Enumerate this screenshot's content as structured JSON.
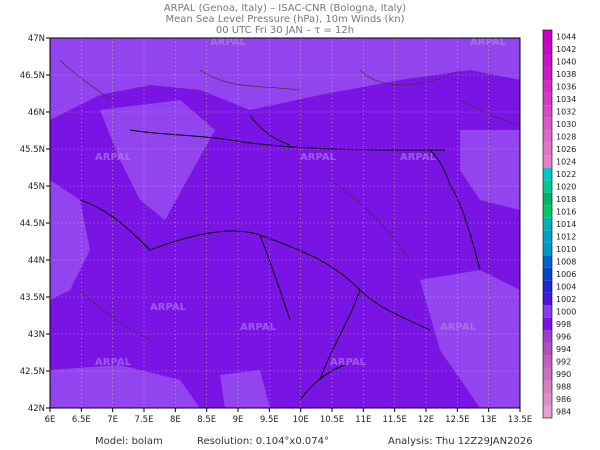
{
  "header": {
    "lines": [
      "ARPAL (Genoa, Italy)  –  ISAC-CNR (Bologna, Italy)",
      "Mean Sea Level Pressure (hPa), 10m Winds (kn)",
      "00 UTC Fri 30 JAN  –  τ = 12h"
    ]
  },
  "map": {
    "lon_labels": [
      "6E",
      "6.5E",
      "7E",
      "7.5E",
      "8E",
      "8.5E",
      "9E",
      "9.5E",
      "10E",
      "10.5E",
      "11E",
      "11.5E",
      "12E",
      "12.5E",
      "13E",
      "13.5E"
    ],
    "lat_labels": [
      "47N",
      "46.5N",
      "46N",
      "45.5N",
      "45N",
      "44.5N",
      "44N",
      "43.5N",
      "43N",
      "42.5N",
      "42N"
    ],
    "watermark": "ARPAL"
  },
  "colorbar": {
    "labels": [
      "1044",
      "1042",
      "1040",
      "1038",
      "1036",
      "1034",
      "1032",
      "1030",
      "1028",
      "1026",
      "1024",
      "1022",
      "1020",
      "1018",
      "1016",
      "1014",
      "1012",
      "1010",
      "1008",
      "1006",
      "1004",
      "1002",
      "1000",
      "998",
      "996",
      "994",
      "992",
      "990",
      "988",
      "986",
      "984"
    ],
    "colors": [
      "#c800c8",
      "#c80ac8",
      "#c814c8",
      "#c81ec8",
      "#d22dc8",
      "#d23cc8",
      "#d84bc8",
      "#dc5ac8",
      "#e066c8",
      "#e472c8",
      "#e87ec8",
      "#00c8c8",
      "#00c896",
      "#00b464",
      "#00c864",
      "#00b4b4",
      "#00a0c8",
      "#0096c8",
      "#0064c8",
      "#0046c8",
      "#1e28d2",
      "#5014dc",
      "#8c3cf0",
      "#7814e6",
      "#a040c8",
      "#b450c0",
      "#c060c0",
      "#cc70c0",
      "#d880c0",
      "#e090c8",
      "#e8a0d0"
    ]
  },
  "footer": {
    "model": "Model: bolam",
    "resolution": "Resolution: 0.104°x0.074°",
    "analysis": "Analysis: Thu 12Z29JAN2026"
  }
}
